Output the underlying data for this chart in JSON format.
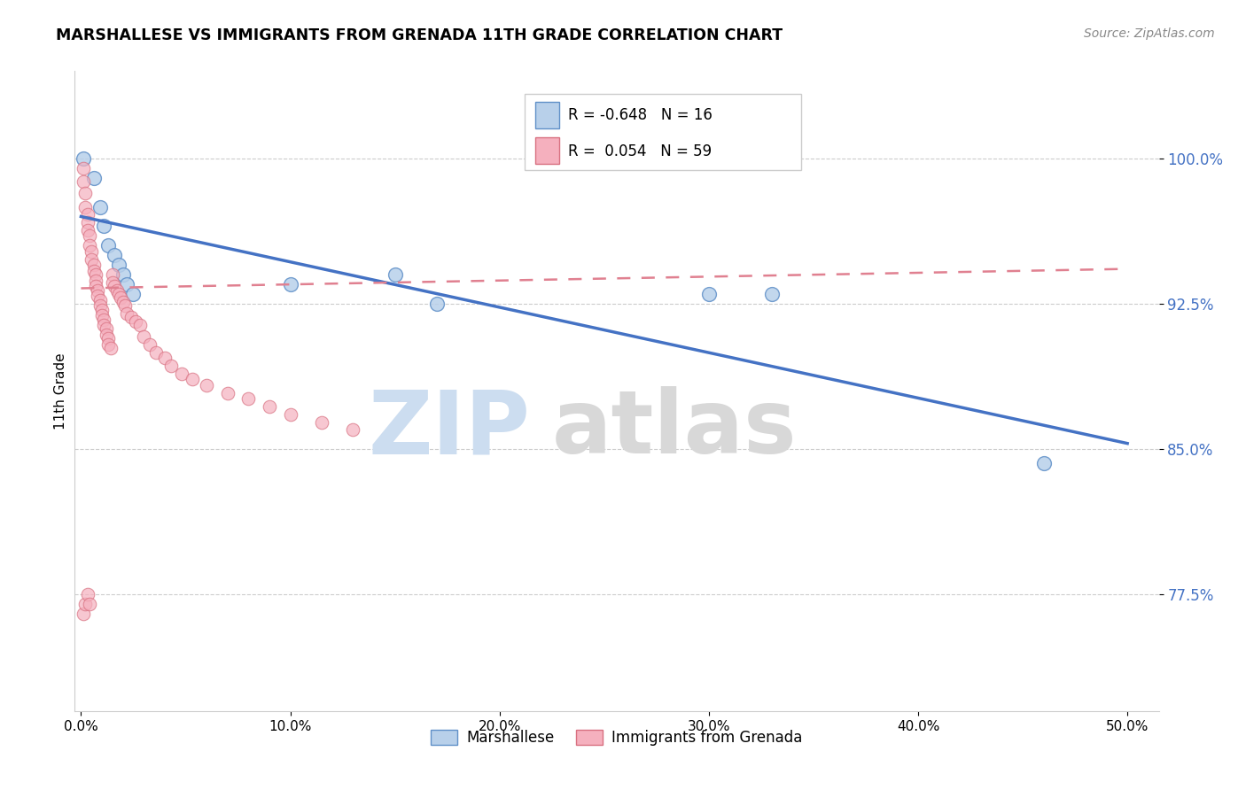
{
  "title": "MARSHALLESE VS IMMIGRANTS FROM GRENADA 11TH GRADE CORRELATION CHART",
  "source": "Source: ZipAtlas.com",
  "ylabel": "11th Grade",
  "blue_label": "Marshallese",
  "pink_label": "Immigrants from Grenada",
  "blue_R": -0.648,
  "blue_N": 16,
  "pink_R": 0.054,
  "pink_N": 59,
  "blue_color": "#b8d0ea",
  "pink_color": "#f5b0be",
  "blue_edge_color": "#6090c8",
  "pink_edge_color": "#d87080",
  "blue_line_color": "#4472c4",
  "pink_line_color": "#e08090",
  "watermark_zip_color": "#ccddf0",
  "watermark_atlas_color": "#d8d8d8",
  "ymin": 0.715,
  "ymax": 1.045,
  "xmin": -0.003,
  "xmax": 0.515,
  "ytick_vals": [
    0.775,
    0.85,
    0.925,
    1.0
  ],
  "ytick_labels": [
    "77.5%",
    "85.0%",
    "92.5%",
    "100.0%"
  ],
  "xtick_vals": [
    0.0,
    0.1,
    0.2,
    0.3,
    0.4,
    0.5
  ],
  "xtick_labels": [
    "0.0%",
    "10.0%",
    "20.0%",
    "30.0%",
    "40.0%",
    "50.0%"
  ],
  "blue_x": [
    0.001,
    0.006,
    0.009,
    0.011,
    0.013,
    0.016,
    0.018,
    0.02,
    0.022,
    0.025,
    0.1,
    0.15,
    0.17,
    0.3,
    0.33,
    0.46
  ],
  "blue_y": [
    1.0,
    0.99,
    0.975,
    0.965,
    0.955,
    0.95,
    0.945,
    0.94,
    0.935,
    0.93,
    0.935,
    0.94,
    0.925,
    0.93,
    0.93,
    0.843
  ],
  "pink_x": [
    0.001,
    0.001,
    0.002,
    0.002,
    0.003,
    0.003,
    0.003,
    0.004,
    0.004,
    0.005,
    0.005,
    0.006,
    0.006,
    0.007,
    0.007,
    0.007,
    0.008,
    0.008,
    0.009,
    0.009,
    0.01,
    0.01,
    0.011,
    0.011,
    0.012,
    0.012,
    0.013,
    0.013,
    0.014,
    0.015,
    0.015,
    0.016,
    0.017,
    0.018,
    0.019,
    0.02,
    0.021,
    0.022,
    0.024,
    0.026,
    0.028,
    0.03,
    0.033,
    0.036,
    0.04,
    0.043,
    0.048,
    0.053,
    0.06,
    0.07,
    0.08,
    0.09,
    0.1,
    0.115,
    0.13,
    0.001,
    0.002,
    0.003,
    0.004
  ],
  "pink_y": [
    0.995,
    0.988,
    0.982,
    0.975,
    0.971,
    0.967,
    0.963,
    0.96,
    0.955,
    0.952,
    0.948,
    0.945,
    0.942,
    0.94,
    0.937,
    0.934,
    0.932,
    0.929,
    0.927,
    0.924,
    0.922,
    0.919,
    0.917,
    0.914,
    0.912,
    0.909,
    0.907,
    0.904,
    0.902,
    0.94,
    0.936,
    0.934,
    0.932,
    0.93,
    0.928,
    0.926,
    0.924,
    0.92,
    0.918,
    0.916,
    0.914,
    0.908,
    0.904,
    0.9,
    0.897,
    0.893,
    0.889,
    0.886,
    0.883,
    0.879,
    0.876,
    0.872,
    0.868,
    0.864,
    0.86,
    0.765,
    0.77,
    0.775,
    0.77
  ]
}
